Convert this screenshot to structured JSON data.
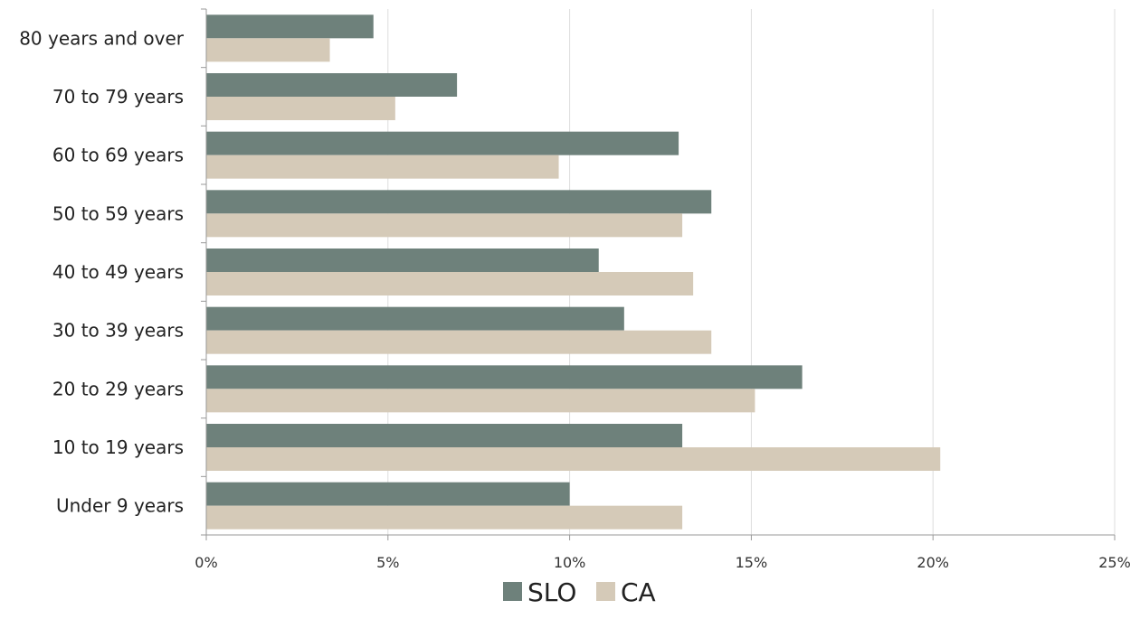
{
  "chart_data": {
    "type": "bar",
    "orientation": "horizontal",
    "categories": [
      "80 years and over",
      "70 to 79 years",
      "60 to 69 years",
      "50 to 59 years",
      "40 to 49 years",
      "30 to 39 years",
      "20 to 29 years",
      "10 to 19 years",
      "Under 9 years"
    ],
    "series": [
      {
        "name": "SLO",
        "color": "#6e817b",
        "values": [
          4.6,
          6.9,
          13.0,
          13.9,
          10.8,
          11.5,
          16.4,
          13.1,
          10.0
        ]
      },
      {
        "name": "CA",
        "color": "#d5cab8",
        "values": [
          3.4,
          5.2,
          9.7,
          13.1,
          13.4,
          13.9,
          15.1,
          20.2,
          13.1
        ]
      }
    ],
    "x_ticks": [
      "0%",
      "5%",
      "10%",
      "15%",
      "20%",
      "25%"
    ],
    "xlim": [
      0,
      25
    ],
    "x_unit": "%",
    "grid": "vertical",
    "legend_position": "bottom"
  }
}
